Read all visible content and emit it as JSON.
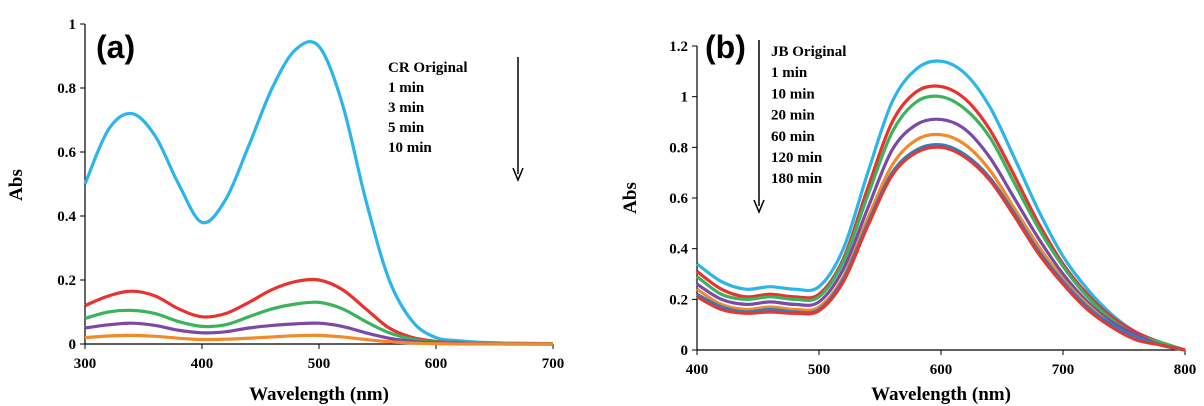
{
  "chart_data": [
    {
      "type": "line",
      "panel_label": "(a)",
      "xlabel": "Wavelength (nm)",
      "ylabel": "Abs",
      "xlim": [
        300,
        700
      ],
      "ylim": [
        0,
        1
      ],
      "xticks": [
        "300",
        "400",
        "500",
        "600",
        "700"
      ],
      "yticks": [
        "0",
        "0.2",
        "0.4",
        "0.6",
        "0.8",
        "1"
      ],
      "xtick_values": [
        300,
        400,
        500,
        600,
        700
      ],
      "ytick_values": [
        0,
        0.2,
        0.4,
        0.6,
        0.8,
        1
      ],
      "grid": false,
      "legend_placement": "top-right",
      "legend": [
        "CR Original",
        "1 min",
        "3 min",
        "5 min",
        "10 min"
      ],
      "arrow": "down",
      "x": [
        300,
        320,
        340,
        360,
        380,
        400,
        420,
        440,
        460,
        480,
        500,
        520,
        540,
        560,
        580,
        600,
        620,
        640,
        660,
        680,
        700
      ],
      "series": [
        {
          "name": "CR Original",
          "color": "#2bb5ea",
          "values": [
            0.5,
            0.67,
            0.72,
            0.65,
            0.5,
            0.38,
            0.45,
            0.62,
            0.8,
            0.92,
            0.93,
            0.75,
            0.45,
            0.2,
            0.07,
            0.02,
            0.01,
            0.005,
            0.003,
            0.002,
            0.001
          ]
        },
        {
          "name": "1 min",
          "color": "#e8322e",
          "values": [
            0.12,
            0.15,
            0.165,
            0.15,
            0.11,
            0.085,
            0.095,
            0.13,
            0.17,
            0.195,
            0.2,
            0.17,
            0.11,
            0.05,
            0.02,
            0.008,
            0.004,
            0.002,
            0.001,
            0.001,
            0.0
          ]
        },
        {
          "name": "3 min",
          "color": "#3ab35c",
          "values": [
            0.08,
            0.1,
            0.105,
            0.095,
            0.07,
            0.055,
            0.06,
            0.085,
            0.11,
            0.125,
            0.13,
            0.11,
            0.07,
            0.035,
            0.015,
            0.006,
            0.003,
            0.002,
            0.001,
            0.0,
            0.0
          ]
        },
        {
          "name": "5 min",
          "color": "#7a4aa6",
          "values": [
            0.05,
            0.06,
            0.065,
            0.058,
            0.043,
            0.035,
            0.038,
            0.05,
            0.058,
            0.063,
            0.065,
            0.055,
            0.035,
            0.018,
            0.008,
            0.004,
            0.002,
            0.001,
            0.0,
            0.0,
            0.0
          ]
        },
        {
          "name": "10 min",
          "color": "#f08a2a",
          "values": [
            0.02,
            0.025,
            0.027,
            0.024,
            0.018,
            0.014,
            0.015,
            0.018,
            0.022,
            0.026,
            0.027,
            0.022,
            0.014,
            0.007,
            0.003,
            0.001,
            0.0,
            0.0,
            0.0,
            0.0,
            0.0
          ]
        }
      ]
    },
    {
      "type": "line",
      "panel_label": "(b)",
      "xlabel": "Wavelength (nm)",
      "ylabel": "Abs",
      "xlim": [
        400,
        800
      ],
      "ylim": [
        0,
        1.2
      ],
      "xticks": [
        "400",
        "500",
        "600",
        "700",
        "800"
      ],
      "yticks": [
        "0",
        "0.2",
        "0.4",
        "0.6",
        "0.8",
        "1",
        "1.2"
      ],
      "xtick_values": [
        400,
        500,
        600,
        700,
        800
      ],
      "ytick_values": [
        0,
        0.2,
        0.4,
        0.6,
        0.8,
        1,
        1.2
      ],
      "grid": false,
      "legend_placement": "top-left",
      "legend": [
        "JB Original",
        "1 min",
        "10 min",
        "20 min",
        "60 min",
        "120 min",
        "180 min"
      ],
      "arrow": "down",
      "x": [
        400,
        420,
        440,
        460,
        480,
        500,
        520,
        540,
        560,
        580,
        600,
        620,
        640,
        660,
        680,
        700,
        720,
        740,
        760,
        780,
        800
      ],
      "series": [
        {
          "name": "JB Original",
          "color": "#2bb5ea",
          "values": [
            0.34,
            0.27,
            0.24,
            0.25,
            0.24,
            0.25,
            0.4,
            0.7,
            0.98,
            1.11,
            1.14,
            1.09,
            0.96,
            0.76,
            0.55,
            0.37,
            0.24,
            0.14,
            0.07,
            0.03,
            0.0
          ]
        },
        {
          "name": "1 min",
          "color": "#e8322e",
          "values": [
            0.31,
            0.24,
            0.21,
            0.22,
            0.21,
            0.22,
            0.36,
            0.64,
            0.9,
            1.02,
            1.04,
            0.99,
            0.87,
            0.69,
            0.5,
            0.34,
            0.22,
            0.13,
            0.07,
            0.03,
            0.0
          ]
        },
        {
          "name": "10 min",
          "color": "#3ab35c",
          "values": [
            0.29,
            0.22,
            0.2,
            0.21,
            0.2,
            0.21,
            0.35,
            0.61,
            0.86,
            0.98,
            1.0,
            0.95,
            0.84,
            0.66,
            0.48,
            0.33,
            0.21,
            0.12,
            0.06,
            0.03,
            0.0
          ]
        },
        {
          "name": "20 min",
          "color": "#7a4aa6",
          "values": [
            0.26,
            0.2,
            0.18,
            0.19,
            0.18,
            0.19,
            0.32,
            0.56,
            0.79,
            0.89,
            0.91,
            0.87,
            0.76,
            0.6,
            0.44,
            0.3,
            0.19,
            0.11,
            0.06,
            0.02,
            0.0
          ]
        },
        {
          "name": "60 min",
          "color": "#f08a2a",
          "values": [
            0.24,
            0.18,
            0.16,
            0.17,
            0.16,
            0.17,
            0.29,
            0.52,
            0.73,
            0.83,
            0.85,
            0.81,
            0.71,
            0.56,
            0.41,
            0.28,
            0.18,
            0.1,
            0.05,
            0.02,
            0.0
          ]
        },
        {
          "name": "120 min",
          "color": "#2b7fc2",
          "values": [
            0.22,
            0.17,
            0.15,
            0.16,
            0.15,
            0.16,
            0.28,
            0.5,
            0.7,
            0.79,
            0.81,
            0.77,
            0.68,
            0.54,
            0.39,
            0.27,
            0.17,
            0.1,
            0.05,
            0.02,
            0.0
          ]
        },
        {
          "name": "180 min",
          "color": "#e03a36",
          "values": [
            0.21,
            0.16,
            0.145,
            0.15,
            0.145,
            0.155,
            0.27,
            0.49,
            0.69,
            0.78,
            0.8,
            0.76,
            0.67,
            0.53,
            0.38,
            0.26,
            0.16,
            0.09,
            0.04,
            0.02,
            0.0
          ]
        }
      ]
    }
  ]
}
